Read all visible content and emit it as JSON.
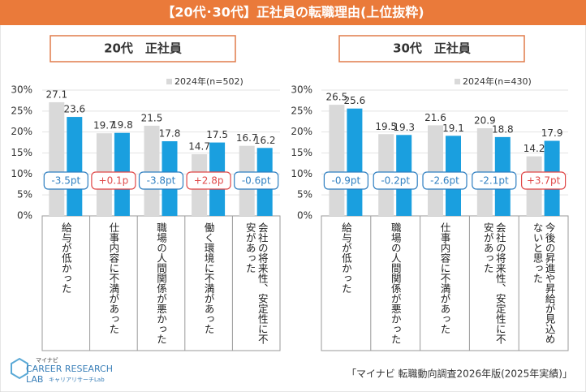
{
  "title": "【20代･30代】正社員の転職理由(上位抜粋)",
  "source": "「マイナビ 転職動向調査2026年版(2025年実績)」",
  "logo": {
    "top": "マイナビ",
    "main": "CAREER RESEARCH",
    "sub": "LAB",
    "kana": "キャリアリサーチLab"
  },
  "chart_data": [
    {
      "type": "bar",
      "title": "20代　正社員",
      "categories": [
        "給与が低かった",
        "仕事内容に不満があった",
        "職場の人間関係が悪かった",
        "働く環境に不満があった",
        "会社の将来性、安定性に不安があった"
      ],
      "series": [
        {
          "name": "2024年(n=502)",
          "color": "#d9d9d9",
          "values": [
            27.1,
            19.7,
            21.5,
            14.7,
            16.7
          ]
        },
        {
          "color": "#1a9fdf",
          "values": [
            23.6,
            19.8,
            17.8,
            17.5,
            16.2
          ]
        }
      ],
      "diff_labels": [
        "-3.5pt",
        "+0.1p",
        "-3.8pt",
        "+2.8p",
        "-0.6pt"
      ],
      "ylim": [
        0,
        30
      ],
      "yticks": [
        {
          "value": 0,
          "label": "0%"
        },
        {
          "value": 5,
          "label": "5%"
        },
        {
          "value": 10,
          "label": "10%"
        },
        {
          "value": 15,
          "label": "15%"
        },
        {
          "value": 20,
          "label": "20%"
        },
        {
          "value": 25,
          "label": "25%"
        },
        {
          "value": 30,
          "label": "30%"
        }
      ],
      "grid": true
    },
    {
      "type": "bar",
      "title": "30代　正社員",
      "categories": [
        "給与が低かった",
        "職場の人間関係が悪かった",
        "仕事内容に不満があった",
        "会社の将来性、安定性に不安があった",
        "今後の昇進や昇給が見込めないと思った"
      ],
      "series": [
        {
          "name": "2024年(n=430)",
          "color": "#d9d9d9",
          "values": [
            26.5,
            19.5,
            21.6,
            20.9,
            14.2
          ]
        },
        {
          "color": "#1a9fdf",
          "values": [
            25.6,
            19.3,
            19.1,
            18.8,
            17.9
          ]
        }
      ],
      "diff_labels": [
        "-0.9pt",
        "-0.2pt",
        "-2.6pt",
        "-2.1pt",
        "+3.7pt"
      ],
      "ylim": [
        0,
        30
      ],
      "yticks": [
        {
          "value": 0,
          "label": "0%"
        },
        {
          "value": 5,
          "label": "5%"
        },
        {
          "value": 10,
          "label": "10%"
        },
        {
          "value": 15,
          "label": "15%"
        },
        {
          "value": 20,
          "label": "20%"
        },
        {
          "value": 25,
          "label": "25%"
        },
        {
          "value": 30,
          "label": "30%"
        }
      ],
      "grid": true
    }
  ]
}
